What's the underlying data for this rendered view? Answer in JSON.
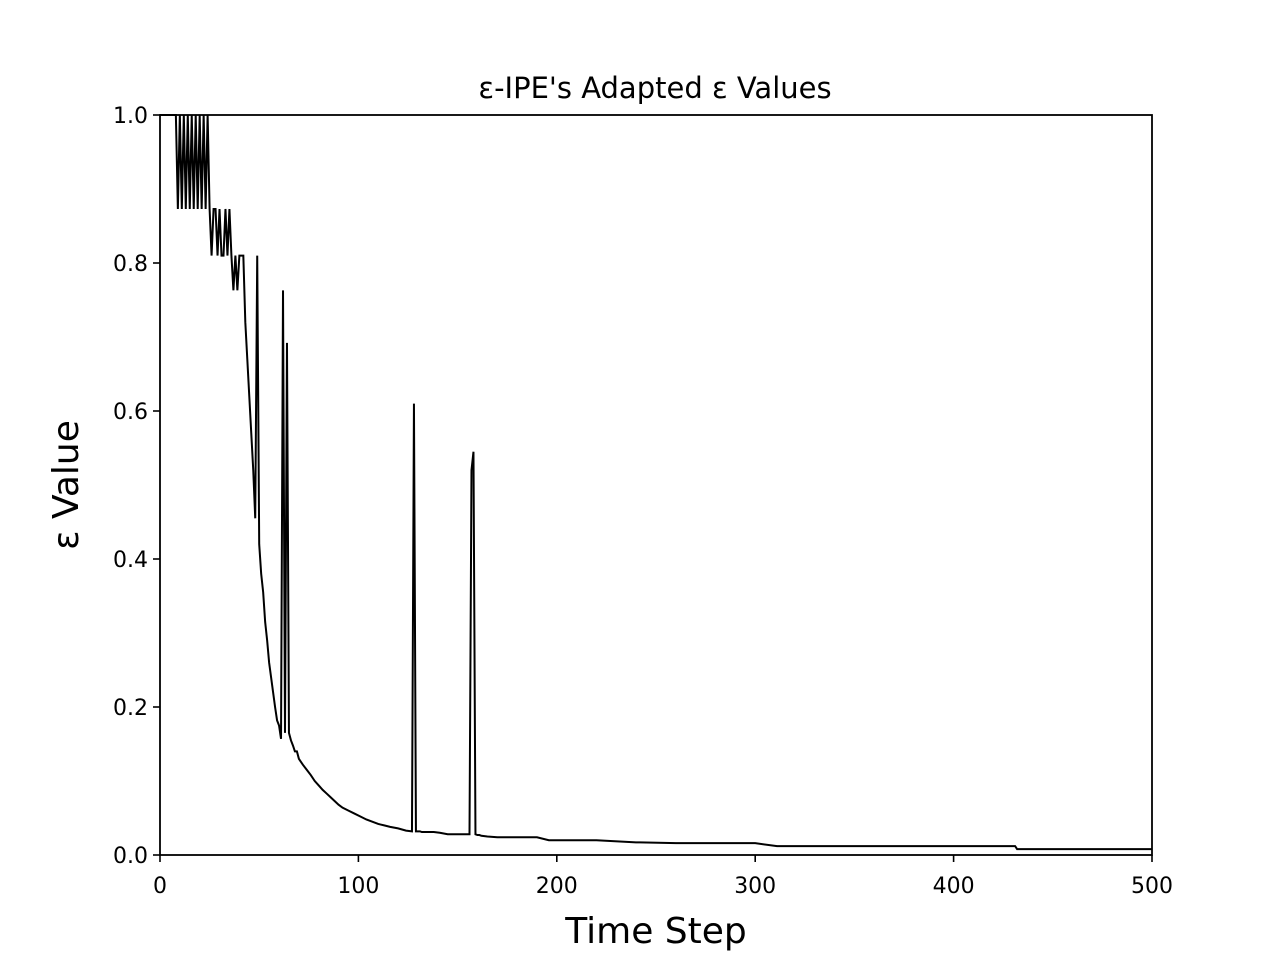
{
  "chart_data": {
    "type": "line",
    "title": "ε-IPE's Adapted ε Values",
    "xlabel": "Time Step",
    "ylabel": "ε Value",
    "xlim": [
      0,
      500
    ],
    "ylim": [
      0,
      1.0
    ],
    "x_ticks": [
      0,
      100,
      200,
      300,
      400,
      500
    ],
    "x_tick_labels": [
      "0",
      "100",
      "200",
      "300",
      "400",
      "500"
    ],
    "y_ticks": [
      0.0,
      0.2,
      0.4,
      0.6,
      0.8,
      1.0
    ],
    "y_tick_labels": [
      "0.0",
      "0.2",
      "0.4",
      "0.6",
      "0.8",
      "1.0"
    ],
    "grid": false,
    "legend": "none",
    "line_color": "#000000",
    "series": [
      {
        "x": [
          0,
          8,
          9,
          10,
          11,
          12,
          13,
          14,
          15,
          16,
          17,
          18,
          19,
          20,
          21,
          22,
          23,
          24,
          25,
          26,
          27,
          28,
          29,
          30,
          31,
          32,
          33,
          34,
          35,
          36,
          37,
          38,
          39,
          40,
          41,
          42,
          43,
          44,
          45,
          46,
          47,
          48,
          49,
          50,
          51,
          52,
          53,
          54,
          55,
          56,
          57,
          58,
          59,
          60,
          61,
          62,
          63,
          64,
          65,
          66,
          67,
          68,
          69,
          70,
          72,
          74,
          76,
          78,
          80,
          82,
          84,
          86,
          88,
          90,
          92,
          95,
          98,
          101,
          104,
          107,
          110,
          113,
          116,
          120,
          124,
          127,
          128,
          129,
          130,
          131,
          132,
          135,
          138,
          141,
          145,
          150,
          155,
          156,
          157,
          158,
          159,
          160,
          161,
          162,
          165,
          170,
          175,
          180,
          185,
          190,
          196,
          197,
          200,
          220,
          240,
          242,
          260,
          280,
          300,
          311,
          312,
          350,
          400,
          431,
          432,
          500
        ],
        "y": [
          1.0,
          1.0,
          0.873,
          1.0,
          0.873,
          1.0,
          0.873,
          1.0,
          0.873,
          1.0,
          0.873,
          1.0,
          0.873,
          1.0,
          0.873,
          1.0,
          0.873,
          1.0,
          0.873,
          0.81,
          0.873,
          0.873,
          0.81,
          0.873,
          0.81,
          0.81,
          0.873,
          0.81,
          0.873,
          0.81,
          0.763,
          0.81,
          0.763,
          0.81,
          0.81,
          0.81,
          0.72,
          0.67,
          0.62,
          0.57,
          0.52,
          0.455,
          0.81,
          0.42,
          0.38,
          0.355,
          0.315,
          0.29,
          0.26,
          0.24,
          0.22,
          0.2,
          0.182,
          0.175,
          0.157,
          0.763,
          0.165,
          0.692,
          0.165,
          0.155,
          0.148,
          0.14,
          0.14,
          0.13,
          0.122,
          0.115,
          0.108,
          0.1,
          0.094,
          0.088,
          0.083,
          0.078,
          0.073,
          0.068,
          0.064,
          0.06,
          0.056,
          0.052,
          0.048,
          0.045,
          0.042,
          0.04,
          0.038,
          0.036,
          0.033,
          0.032,
          0.61,
          0.032,
          0.032,
          0.032,
          0.031,
          0.031,
          0.031,
          0.03,
          0.028,
          0.028,
          0.028,
          0.028,
          0.52,
          0.545,
          0.028,
          0.027,
          0.027,
          0.026,
          0.025,
          0.024,
          0.024,
          0.024,
          0.024,
          0.024,
          0.02,
          0.02,
          0.02,
          0.02,
          0.017,
          0.017,
          0.016,
          0.016,
          0.016,
          0.012,
          0.012,
          0.012,
          0.012,
          0.012,
          0.008,
          0.008
        ]
      }
    ]
  }
}
